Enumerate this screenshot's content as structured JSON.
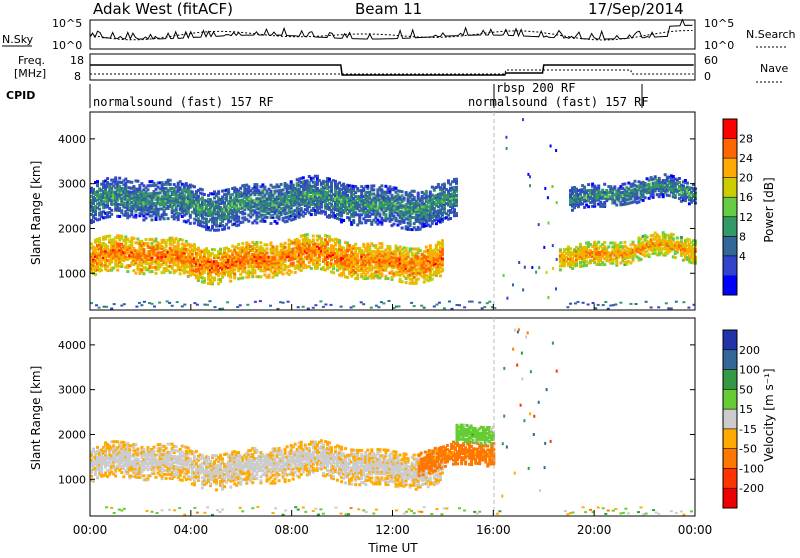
{
  "header": {
    "site": "Adak West (fitACF)",
    "beam": "Beam 11",
    "date": "17/Sep/2014"
  },
  "status_panels": {
    "nsky_label": "N.Sky",
    "nsearch_label": "N.Search",
    "noise_ticks": [
      "10^5",
      "10^0"
    ],
    "freq_label_1": "Freq.",
    "freq_label_2": "[MHz]",
    "freq_ticks": [
      "18",
      "8"
    ],
    "nave_label": "Nave",
    "nave_ticks": [
      "60",
      "0"
    ],
    "cpid_label": "CPID",
    "cpid_segments": [
      {
        "label": "normalsound (fast) 157 RF",
        "start_hour": 0
      },
      {
        "label": "rbsp 200 RF",
        "start_hour": 16
      },
      {
        "label": "normalsound (fast) 157 RF",
        "start_hour": 16
      }
    ]
  },
  "chart_data": [
    {
      "type": "heatmap",
      "name": "power",
      "ylabel": "Slant Range [km]",
      "xlabel": "",
      "x_ticks": [
        "00:00",
        "04:00",
        "08:00",
        "12:00",
        "16:00",
        "20:00",
        "00:00"
      ],
      "xlim_hours": [
        0,
        24
      ],
      "y_ticks": [
        1000,
        2000,
        3000,
        4000
      ],
      "ylim": [
        180,
        4600
      ],
      "colorbar": {
        "label": "Power [dB]",
        "ticks": [
          28,
          24,
          20,
          16,
          12,
          8,
          4
        ],
        "colors": [
          "#ff0000",
          "#ff6600",
          "#ffaa00",
          "#cccc00",
          "#66cc44",
          "#339966",
          "#336699",
          "#3344cc",
          "#0000ff"
        ]
      },
      "features": [
        {
          "desc": "main F-region band",
          "hours": [
            0,
            14
          ],
          "range_km": [
            900,
            1700
          ],
          "level_db": 26
        },
        {
          "desc": "upper band",
          "hours": [
            0,
            14.5
          ],
          "range_km": [
            2100,
            3000
          ],
          "level_db": 12
        },
        {
          "desc": "late band",
          "hours": [
            18.6,
            24
          ],
          "range_km": [
            1200,
            1700
          ],
          "level_db": 24
        },
        {
          "desc": "late upper band",
          "hours": [
            19,
            24
          ],
          "range_km": [
            2500,
            3000
          ],
          "level_db": 12
        }
      ]
    },
    {
      "type": "heatmap",
      "name": "velocity",
      "ylabel": "Slant Range [km]",
      "xlabel": "Time UT",
      "x_ticks": [
        "00:00",
        "04:00",
        "08:00",
        "12:00",
        "16:00",
        "20:00",
        "00:00"
      ],
      "xlim_hours": [
        0,
        24
      ],
      "y_ticks": [
        1000,
        2000,
        3000,
        4000
      ],
      "ylim": [
        180,
        4600
      ],
      "colorbar": {
        "label": "Velocity [m s⁻¹]",
        "ticks": [
          200,
          100,
          50,
          15,
          -15,
          -50,
          -100,
          -200
        ],
        "colors": [
          "#2233aa",
          "#336699",
          "#339944",
          "#66cc33",
          "#cccccc",
          "#ffaa00",
          "#ff7700",
          "#ff3300",
          "#ee0000"
        ]
      },
      "features": [
        {
          "desc": "ground scatter band",
          "hours": [
            0,
            14
          ],
          "range_km": [
            900,
            1700
          ],
          "velocity": 0
        },
        {
          "desc": "orange region",
          "hours": [
            13,
            16
          ],
          "range_km": [
            1200,
            1700
          ],
          "velocity": -60
        },
        {
          "desc": "green region",
          "hours": [
            14.5,
            16
          ],
          "range_km": [
            1700,
            2100
          ],
          "velocity": 40
        }
      ]
    }
  ]
}
